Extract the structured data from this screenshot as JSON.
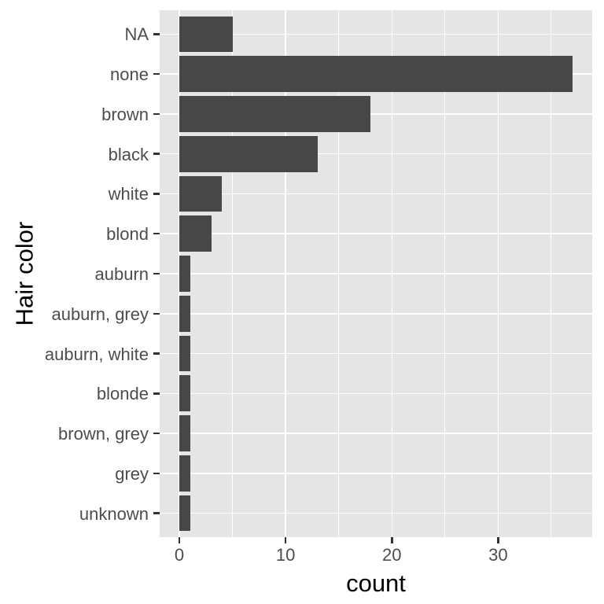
{
  "chart_data": {
    "type": "bar",
    "orientation": "horizontal",
    "xlabel": "count",
    "ylabel": "Hair color",
    "categories_top_to_bottom": [
      "NA",
      "none",
      "brown",
      "black",
      "white",
      "blond",
      "auburn",
      "auburn, grey",
      "auburn, white",
      "blonde",
      "brown, grey",
      "grey",
      "unknown"
    ],
    "values": [
      5,
      37,
      18,
      13,
      4,
      3,
      1,
      1,
      1,
      1,
      1,
      1,
      1
    ],
    "x_major_ticks": [
      0,
      10,
      20,
      30
    ],
    "x_tick_labels": [
      "0",
      "10",
      "20",
      "30"
    ],
    "x_minor_ticks": [
      5,
      15,
      25,
      35
    ],
    "xlim": [
      -1.85,
      38.85
    ],
    "bar_width_fraction": 0.9,
    "grid": "major-and-minor-vertical, major-horizontal",
    "legend": false,
    "colors": {
      "bar_fill": "#474747",
      "panel_background": "#E5E5E5",
      "grid_major": "#FFFFFF",
      "grid_minor": "#FFFFFF",
      "tick_label": "#4D4D4D",
      "axis_title": "#000000",
      "tick_mark": "#333333",
      "figure_background": "#FFFFFF"
    }
  }
}
